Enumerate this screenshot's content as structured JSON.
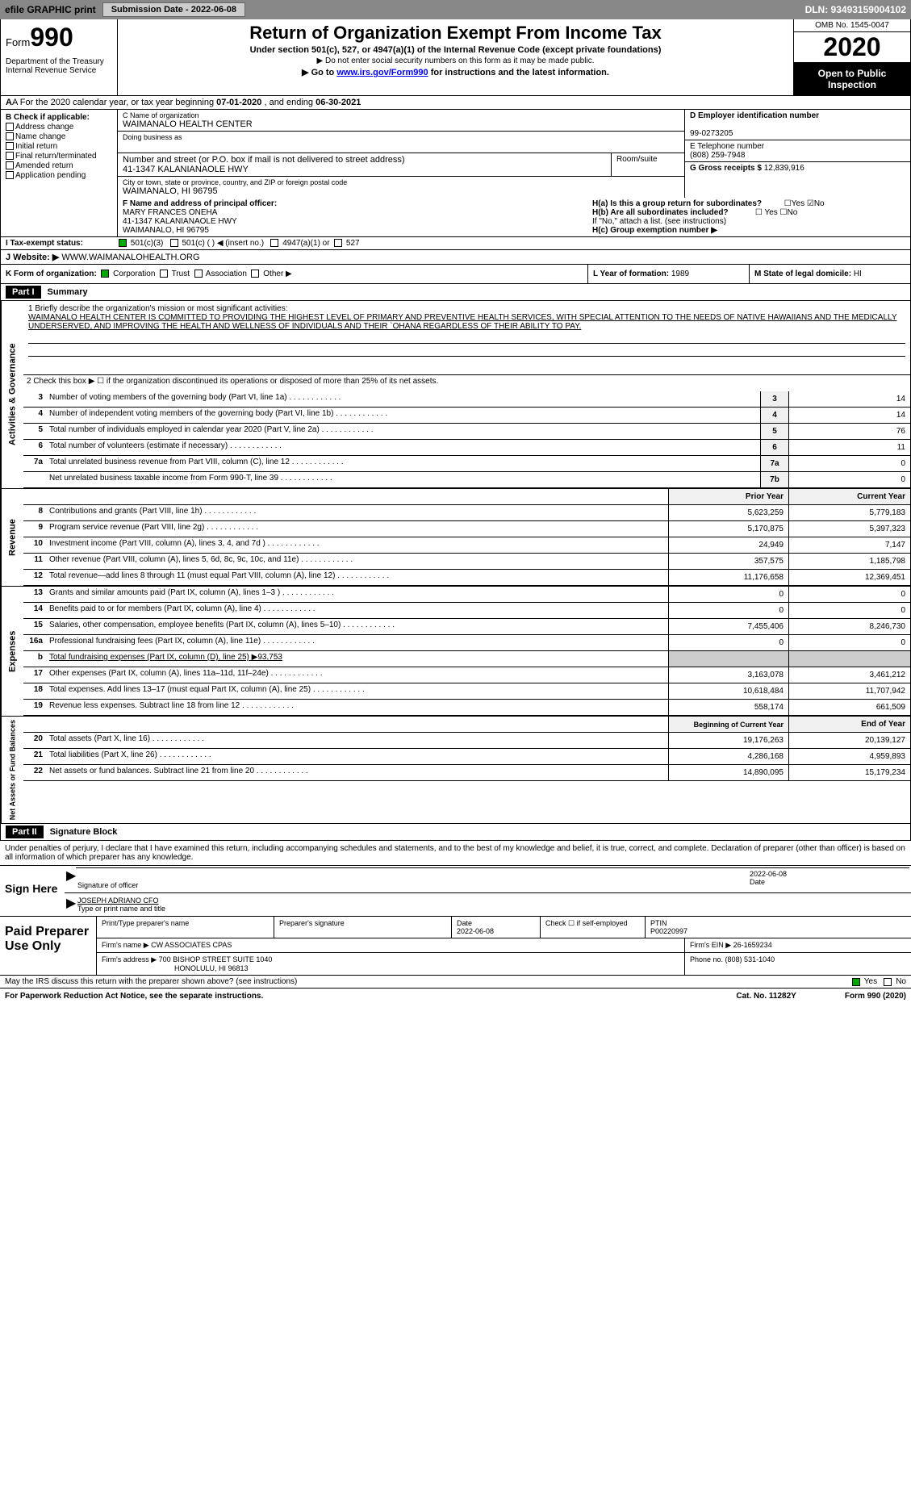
{
  "topBar": {
    "efile": "efile GRAPHIC print",
    "subDateLabel": "Submission Date - 2022-06-08",
    "dln": "DLN: 93493159004102"
  },
  "header": {
    "formWord": "Form",
    "formNum": "990",
    "dept": "Department of the Treasury Internal Revenue Service",
    "title": "Return of Organization Exempt From Income Tax",
    "sub1": "Under section 501(c), 527, or 4947(a)(1) of the Internal Revenue Code (except private foundations)",
    "sub2": "▶ Do not enter social security numbers on this form as it may be made public.",
    "sub3pre": "▶ Go to ",
    "sub3link": "www.irs.gov/Form990",
    "sub3post": " for instructions and the latest information.",
    "omb": "OMB No. 1545-0047",
    "year": "2020",
    "openPub": "Open to Public Inspection"
  },
  "rowA": {
    "pre": "A  For the 2020 calendar year, or tax year beginning ",
    "start": "07-01-2020",
    "mid": "   , and ending ",
    "end": "06-30-2021"
  },
  "colB": {
    "hdr": "B Check if applicable:",
    "items": [
      "Address change",
      "Name change",
      "Initial return",
      "Final return/terminated",
      "Amended return",
      "Application pending"
    ]
  },
  "boxC": {
    "lbl": "C Name of organization",
    "name": "WAIMANALO HEALTH CENTER",
    "dba": "Doing business as",
    "addrLbl": "Number and street (or P.O. box if mail is not delivered to street address)",
    "addr": "41-1347 KALANIANAOLE HWY",
    "room": "Room/suite",
    "cityLbl": "City or town, state or province, country, and ZIP or foreign postal code",
    "city": "WAIMANALO, HI  96795"
  },
  "boxD": {
    "lbl": "D Employer identification number",
    "val": "99-0273205"
  },
  "boxE": {
    "lbl": "E Telephone number",
    "val": "(808) 259-7948"
  },
  "boxG": {
    "lbl": "G Gross receipts $ ",
    "val": "12,839,916"
  },
  "boxF": {
    "lbl": "F Name and address of principal officer:",
    "name": "MARY FRANCES ONEHA",
    "addr1": "41-1347 KALANIANAOLE HWY",
    "addr2": "WAIMANALO, HI  96795"
  },
  "boxH": {
    "ha": "H(a)  Is this a group return for subordinates?",
    "hb": "H(b)  Are all subordinates included?",
    "hbNote": "If \"No,\" attach a list. (see instructions)",
    "hc": "H(c)  Group exemption number ▶"
  },
  "rowI": {
    "lbl": "I   Tax-exempt status:",
    "opts": [
      "501(c)(3)",
      "501(c) (  ) ◀ (insert no.)",
      "4947(a)(1) or",
      "527"
    ]
  },
  "rowJ": {
    "lbl": "J   Website: ▶",
    "val": "WWW.WAIMANALOHEALTH.ORG"
  },
  "rowK": {
    "lbl": "K Form of organization:",
    "opts": [
      "Corporation",
      "Trust",
      "Association",
      "Other ▶"
    ],
    "yearLbl": "L Year of formation: ",
    "yearVal": "1989",
    "stateLbl": "M State of legal domicile: ",
    "stateVal": "HI"
  },
  "part1": {
    "hdr": "Part I",
    "title": "Summary",
    "line1lbl": "1  Briefly describe the organization's mission or most significant activities:",
    "mission": "WAIMANALO HEALTH CENTER IS COMMITTED TO PROVIDING THE HIGHEST LEVEL OF PRIMARY AND PREVENTIVE HEALTH SERVICES, WITH SPECIAL ATTENTION TO THE NEEDS OF NATIVE HAWAIIANS AND THE MEDICALLY UNDERSERVED, AND IMPROVING THE HEALTH AND WELLNESS OF INDIVIDUALS AND THEIR `OHANA REGARDLESS OF THEIR ABILITY TO PAY.",
    "line2": "2   Check this box ▶ ☐  if the organization discontinued its operations or disposed of more than 25% of its net assets.",
    "govRows": [
      {
        "n": "3",
        "txt": "Number of voting members of the governing body (Part VI, line 1a)",
        "cell": "3",
        "val": "14"
      },
      {
        "n": "4",
        "txt": "Number of independent voting members of the governing body (Part VI, line 1b)",
        "cell": "4",
        "val": "14"
      },
      {
        "n": "5",
        "txt": "Total number of individuals employed in calendar year 2020 (Part V, line 2a)",
        "cell": "5",
        "val": "76"
      },
      {
        "n": "6",
        "txt": "Total number of volunteers (estimate if necessary)",
        "cell": "6",
        "val": "11"
      },
      {
        "n": "7a",
        "txt": "Total unrelated business revenue from Part VIII, column (C), line 12",
        "cell": "7a",
        "val": "0"
      },
      {
        "n": "",
        "txt": "Net unrelated business taxable income from Form 990-T, line 39",
        "cell": "7b",
        "val": "0"
      }
    ],
    "colHdrPrior": "Prior Year",
    "colHdrCurrent": "Current Year",
    "revRows": [
      {
        "n": "8",
        "txt": "Contributions and grants (Part VIII, line 1h)",
        "p": "5,623,259",
        "c": "5,779,183"
      },
      {
        "n": "9",
        "txt": "Program service revenue (Part VIII, line 2g)",
        "p": "5,170,875",
        "c": "5,397,323"
      },
      {
        "n": "10",
        "txt": "Investment income (Part VIII, column (A), lines 3, 4, and 7d )",
        "p": "24,949",
        "c": "7,147"
      },
      {
        "n": "11",
        "txt": "Other revenue (Part VIII, column (A), lines 5, 6d, 8c, 9c, 10c, and 11e)",
        "p": "357,575",
        "c": "1,185,798"
      },
      {
        "n": "12",
        "txt": "Total revenue—add lines 8 through 11 (must equal Part VIII, column (A), line 12)",
        "p": "11,176,658",
        "c": "12,369,451"
      }
    ],
    "expRows": [
      {
        "n": "13",
        "txt": "Grants and similar amounts paid (Part IX, column (A), lines 1–3 )",
        "p": "0",
        "c": "0"
      },
      {
        "n": "14",
        "txt": "Benefits paid to or for members (Part IX, column (A), line 4)",
        "p": "0",
        "c": "0"
      },
      {
        "n": "15",
        "txt": "Salaries, other compensation, employee benefits (Part IX, column (A), lines 5–10)",
        "p": "7,455,406",
        "c": "8,246,730"
      },
      {
        "n": "16a",
        "txt": "Professional fundraising fees (Part IX, column (A), line 11e)",
        "p": "0",
        "c": "0"
      },
      {
        "n": "b",
        "txt": "Total fundraising expenses (Part IX, column (D), line 25) ▶93,753",
        "p": "",
        "c": "",
        "noBorder": true
      },
      {
        "n": "17",
        "txt": "Other expenses (Part IX, column (A), lines 11a–11d, 11f–24e)",
        "p": "3,163,078",
        "c": "3,461,212"
      },
      {
        "n": "18",
        "txt": "Total expenses. Add lines 13–17 (must equal Part IX, column (A), line 25)",
        "p": "10,618,484",
        "c": "11,707,942"
      },
      {
        "n": "19",
        "txt": "Revenue less expenses. Subtract line 18 from line 12",
        "p": "558,174",
        "c": "661,509"
      }
    ],
    "colHdrBeg": "Beginning of Current Year",
    "colHdrEnd": "End of Year",
    "netRows": [
      {
        "n": "20",
        "txt": "Total assets (Part X, line 16)",
        "p": "19,176,263",
        "c": "20,139,127"
      },
      {
        "n": "21",
        "txt": "Total liabilities (Part X, line 26)",
        "p": "4,286,168",
        "c": "4,959,893"
      },
      {
        "n": "22",
        "txt": "Net assets or fund balances. Subtract line 21 from line 20",
        "p": "14,890,095",
        "c": "15,179,234"
      }
    ],
    "sideGov": "Activities & Governance",
    "sideRev": "Revenue",
    "sideExp": "Expenses",
    "sideNet": "Net Assets or Fund Balances"
  },
  "part2": {
    "hdr": "Part II",
    "title": "Signature Block",
    "intro": "Under penalties of perjury, I declare that I have examined this return, including accompanying schedules and statements, and to the best of my knowledge and belief, it is true, correct, and complete. Declaration of preparer (other than officer) is based on all information of which preparer has any knowledge.",
    "signHere": "Sign Here",
    "sigOfficer": "Signature of officer",
    "sigDate": "2022-06-08",
    "date": "Date",
    "officerName": "JOSEPH ADRIANO CFO",
    "typeName": "Type or print name and title",
    "paidPrep": "Paid Preparer Use Only",
    "prepName": "Print/Type preparer's name",
    "prepSig": "Preparer's signature",
    "prepDate": "Date",
    "prepDateVal": "2022-06-08",
    "prepCheck": "Check ☐ if self-employed",
    "ptin": "PTIN",
    "ptinVal": "P00220997",
    "firmName": "Firm's name    ▶",
    "firmNameVal": "CW ASSOCIATES CPAS",
    "firmEin": "Firm's EIN ▶",
    "firmEinVal": "26-1659234",
    "firmAddr": "Firm's address ▶",
    "firmAddrVal1": "700 BISHOP STREET SUITE 1040",
    "firmAddrVal2": "HONOLULU, HI  96813",
    "phone": "Phone no. ",
    "phoneVal": "(808) 531-1040",
    "discuss": "May the IRS discuss this return with the preparer shown above? (see instructions)",
    "yes": "Yes",
    "no": "No"
  },
  "footer": {
    "pra": "For Paperwork Reduction Act Notice, see the separate instructions.",
    "cat": "Cat. No. 11282Y",
    "form": "Form 990 (2020)"
  }
}
